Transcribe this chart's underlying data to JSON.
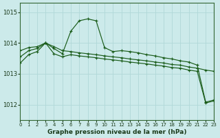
{
  "title": "Graphe pression niveau de la mer (hPa)",
  "bg_color": "#cceaea",
  "grid_color": "#aad4d4",
  "line_color": "#1a5c1a",
  "xlim": [
    0,
    23
  ],
  "ylim": [
    1011.5,
    1015.3
  ],
  "yticks": [
    1012,
    1013,
    1014,
    1015
  ],
  "xticks": [
    0,
    1,
    2,
    3,
    4,
    5,
    6,
    7,
    8,
    9,
    10,
    11,
    12,
    13,
    14,
    15,
    16,
    17,
    18,
    19,
    20,
    21,
    22,
    23
  ],
  "series": [
    {
      "x": [
        0,
        1,
        2,
        3,
        4,
        5,
        6,
        7,
        8,
        9,
        10,
        11,
        12,
        13,
        14,
        15,
        16,
        17,
        18,
        19,
        20,
        21,
        22,
        23
      ],
      "y": [
        1013.55,
        1013.75,
        1013.82,
        1014.0,
        1013.82,
        1013.65,
        1014.38,
        1014.72,
        1014.78,
        1014.72,
        1013.85,
        1013.72,
        1013.75,
        1013.72,
        1013.68,
        1013.62,
        1013.58,
        1013.52,
        1013.48,
        1013.42,
        1013.38,
        1013.28,
        1012.08,
        1012.15
      ]
    },
    {
      "x": [
        0,
        1,
        2,
        3,
        4,
        5,
        6,
        7,
        8,
        9,
        10,
        11,
        12,
        13,
        14,
        15,
        16,
        17,
        18,
        19,
        20,
        21,
        22,
        23
      ],
      "y": [
        1013.75,
        1013.85,
        1013.88,
        1014.0,
        1013.88,
        1013.75,
        1013.72,
        1013.68,
        1013.65,
        1013.62,
        1013.58,
        1013.55,
        1013.52,
        1013.48,
        1013.45,
        1013.42,
        1013.38,
        1013.35,
        1013.3,
        1013.28,
        1013.22,
        1013.18,
        1013.12,
        1013.08
      ]
    },
    {
      "x": [
        0,
        1,
        2,
        3,
        4,
        5,
        6,
        7,
        8,
        9,
        10,
        11,
        12,
        13,
        14,
        15,
        16,
        17,
        18,
        19,
        20,
        21,
        22,
        23
      ],
      "y": [
        1013.35,
        1013.62,
        1013.72,
        1014.0,
        1013.65,
        1013.55,
        1013.62,
        1013.58,
        1013.55,
        1013.52,
        1013.48,
        1013.45,
        1013.42,
        1013.38,
        1013.35,
        1013.32,
        1013.28,
        1013.25,
        1013.2,
        1013.18,
        1013.12,
        1013.08,
        1012.05,
        1012.12
      ]
    }
  ]
}
